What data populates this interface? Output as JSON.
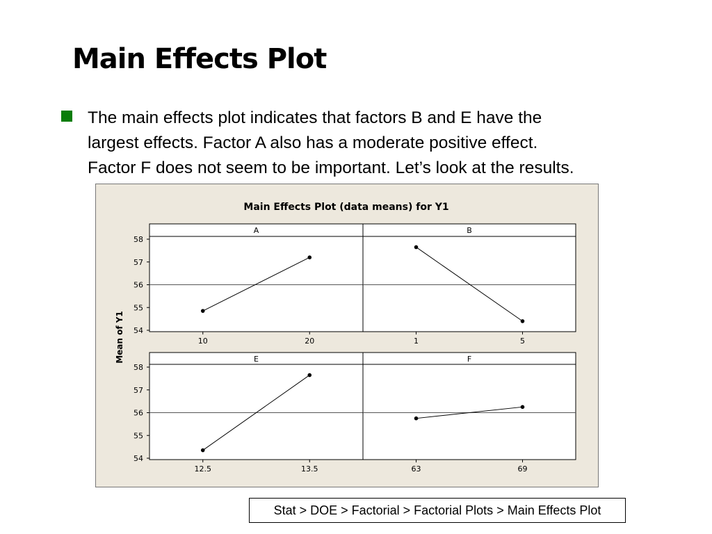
{
  "slide": {
    "title": "Main Effects Plot",
    "bullet_lines": [
      "The main effects plot indicates that factors B and E have the",
      "largest effects.  Factor A also has a moderate positive effect.",
      "Factor F does not seem to be important.  Let’s look at the results."
    ],
    "bullet_color": "#0a7d0a",
    "menu_path": "Stat > DOE > Factorial > Factorial Plots > Main Effects Plot"
  },
  "chart_data": {
    "type": "line",
    "title": "Main Effects Plot (data means) for Y1",
    "ylabel": "Mean of Y1",
    "ylim": [
      54,
      58
    ],
    "yticks": [
      54,
      55,
      56,
      57,
      58
    ],
    "reference_line": 56,
    "background": "#ede8dd",
    "panels": [
      {
        "factor": "A",
        "x": [
          "10",
          "20"
        ],
        "values": [
          54.85,
          57.2
        ]
      },
      {
        "factor": "B",
        "x": [
          "1",
          "5"
        ],
        "values": [
          57.65,
          54.4
        ]
      },
      {
        "factor": "E",
        "x": [
          "12.5",
          "13.5"
        ],
        "values": [
          54.35,
          57.65
        ]
      },
      {
        "factor": "F",
        "x": [
          "63",
          "69"
        ],
        "values": [
          55.75,
          56.25
        ]
      }
    ]
  }
}
